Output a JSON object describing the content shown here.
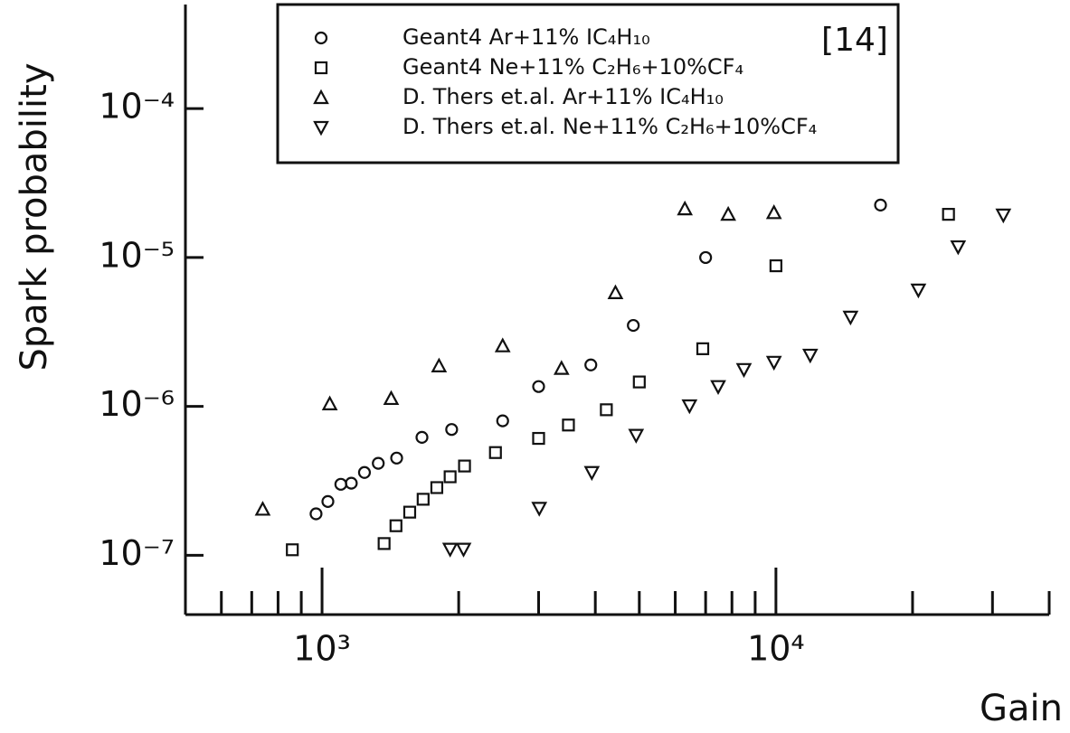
{
  "chart_data": {
    "type": "scatter",
    "xlabel": "Gain",
    "ylabel": "Spark probability",
    "annotation": "[14]",
    "xscale": "log",
    "yscale": "log",
    "xlim": [
      500,
      40000
    ],
    "ylim": [
      4e-08,
      0.0005
    ],
    "xticks": [
      {
        "value": 1000,
        "label": "10³"
      },
      {
        "value": 10000,
        "label": "10⁴"
      }
    ],
    "xminorticks": [
      600,
      700,
      800,
      900,
      2000,
      3000,
      4000,
      5000,
      6000,
      7000,
      8000,
      9000,
      20000,
      30000,
      40000
    ],
    "yticks": [
      {
        "value": 1e-07,
        "label": "10⁻⁷"
      },
      {
        "value": 1e-06,
        "label": "10⁻⁶"
      },
      {
        "value": 1e-05,
        "label": "10⁻⁵"
      },
      {
        "value": 0.0001,
        "label": "10⁻⁴"
      }
    ],
    "legend": "top",
    "series": [
      {
        "name": "Geant4 Ar+11% IC₄H₁₀",
        "color": "#111111",
        "marker": "circle",
        "x": [
          970,
          1030,
          1100,
          1160,
          1240,
          1330,
          1460,
          1660,
          1930,
          2500,
          3000,
          3910,
          4850,
          7000,
          17000
        ],
        "values": [
          1.9e-07,
          2.3e-07,
          3e-07,
          3.05e-07,
          3.6e-07,
          4.15e-07,
          4.5e-07,
          6.2e-07,
          7e-07,
          8e-07,
          1.36e-06,
          1.9e-06,
          3.5e-06,
          1e-05,
          2.25e-05
        ]
      },
      {
        "name": "Geant4 Ne+11% C₂H₆+10%CF₄",
        "color": "#111111",
        "marker": "square",
        "x": [
          860,
          1370,
          1455,
          1560,
          1670,
          1790,
          1915,
          2060,
          2410,
          3000,
          3490,
          4230,
          5000,
          6900,
          10000,
          24000
        ],
        "values": [
          1.09e-07,
          1.2e-07,
          1.58e-07,
          1.95e-07,
          2.38e-07,
          2.85e-07,
          3.37e-07,
          3.98e-07,
          4.9e-07,
          6.1e-07,
          7.5e-07,
          9.5e-07,
          1.46e-06,
          2.44e-06,
          8.8e-06,
          1.95e-05
        ]
      },
      {
        "name": "D. Thers et.al. Ar+11% IC₄H₁₀",
        "color": "#111111",
        "marker": "triangle-up",
        "x": [
          740,
          1040,
          1420,
          1810,
          2500,
          3370,
          4430,
          6300,
          7850,
          9900
        ],
        "values": [
          2.04e-07,
          1.04e-06,
          1.13e-06,
          1.87e-06,
          2.55e-06,
          1.8e-06,
          5.8e-06,
          2.12e-05,
          1.95e-05,
          2e-05
        ]
      },
      {
        "name": "D. Thers et.al. Ne+11% C₂H₆+10%CF₄",
        "color": "#111111",
        "marker": "triangle-down",
        "x": [
          1915,
          2050,
          3010,
          3930,
          4920,
          6450,
          7460,
          8500,
          9900,
          11900,
          14600,
          20600,
          25200,
          31700
        ],
        "values": [
          1.1e-07,
          1.1e-07,
          2.07e-07,
          3.6e-07,
          6.4e-07,
          1.01e-06,
          1.36e-06,
          1.77e-06,
          1.98e-06,
          2.21e-06,
          3.98e-06,
          6.05e-06,
          1.18e-05,
          1.93e-05
        ]
      }
    ]
  }
}
